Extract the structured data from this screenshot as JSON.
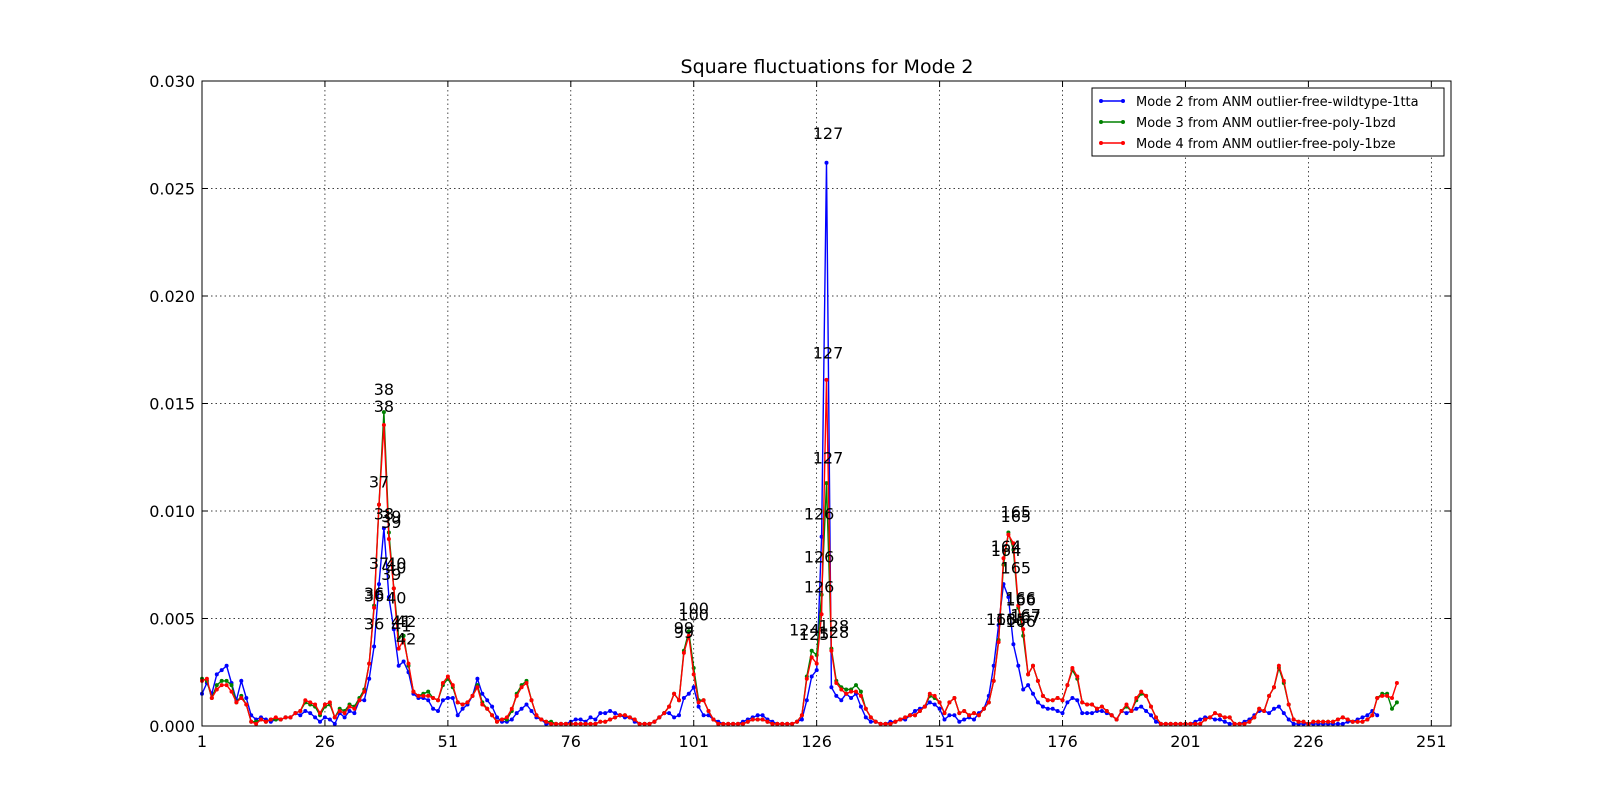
{
  "chart_data": {
    "type": "line",
    "title": "Square fluctuations for Mode 2",
    "xlabel": "",
    "ylabel": "",
    "xlim": [
      1,
      255
    ],
    "ylim": [
      0,
      0.03
    ],
    "x_start": 1,
    "x_ticks": [
      1,
      26,
      51,
      76,
      101,
      126,
      151,
      176,
      201,
      226,
      251
    ],
    "y_ticks": [
      "0.000",
      "0.005",
      "0.010",
      "0.015",
      "0.020",
      "0.025",
      "0.030"
    ],
    "grid": true,
    "legend_position": "top-right",
    "series": [
      {
        "name": "Mode 2 from ANM outlier-free-wildtype-1tta",
        "color": "#0000ff",
        "values": [
          0.0015,
          0.002,
          0.0015,
          0.0024,
          0.0026,
          0.0028,
          0.002,
          0.0012,
          0.0021,
          0.0013,
          0.0005,
          0.0003,
          0.0004,
          0.0003,
          0.0002,
          0.0003,
          0.0003,
          0.0004,
          0.0004,
          0.0006,
          0.0005,
          0.0007,
          0.0006,
          0.0004,
          0.0002,
          0.0004,
          0.0003,
          0.0001,
          0.0006,
          0.0004,
          0.0007,
          0.0006,
          0.0012,
          0.0012,
          0.0022,
          0.0037,
          0.0066,
          0.0092,
          0.006,
          0.0045,
          0.0028,
          0.003,
          0.0025,
          0.0015,
          0.0013,
          0.0013,
          0.0012,
          0.0008,
          0.0007,
          0.0012,
          0.0013,
          0.0013,
          0.0005,
          0.0008,
          0.001,
          0.0014,
          0.0022,
          0.0015,
          0.0012,
          0.0009,
          0.0004,
          0.0002,
          0.0002,
          0.0003,
          0.0006,
          0.0008,
          0.001,
          0.0007,
          0.0004,
          0.0003,
          0.0001,
          0.0001,
          0.0001,
          0.0001,
          0.0001,
          0.0002,
          0.0003,
          0.0003,
          0.0002,
          0.0004,
          0.0003,
          0.0006,
          0.0006,
          0.0007,
          0.0006,
          0.0005,
          0.0004,
          0.0004,
          0.0002,
          0.0001,
          0.0001,
          0.0001,
          0.0002,
          0.0004,
          0.0006,
          0.0006,
          0.0004,
          0.0005,
          0.0013,
          0.0015,
          0.0018,
          0.0009,
          0.0005,
          0.0005,
          0.0003,
          0.0002,
          0.0001,
          0.0001,
          0.0001,
          0.0001,
          0.0002,
          0.0003,
          0.0004,
          0.0005,
          0.0005,
          0.0003,
          0.0002,
          0.0001,
          0.0001,
          0.0001,
          0.0001,
          0.0002,
          0.0003,
          0.0012,
          0.0023,
          0.0026,
          0.0088,
          0.0262,
          0.0018,
          0.0014,
          0.0012,
          0.0015,
          0.0013,
          0.0015,
          0.0009,
          0.0004,
          0.0002,
          0.0002,
          0.0001,
          0.0001,
          0.0002,
          0.0002,
          0.0003,
          0.0003,
          0.0005,
          0.0007,
          0.0008,
          0.0009,
          0.0011,
          0.001,
          0.0008,
          0.0003,
          0.0005,
          0.0005,
          0.0002,
          0.0003,
          0.0004,
          0.0003,
          0.0006,
          0.0008,
          0.0014,
          0.0028,
          0.0047,
          0.0066,
          0.006,
          0.0038,
          0.0028,
          0.0017,
          0.0019,
          0.0015,
          0.0011,
          0.0009,
          0.0008,
          0.0008,
          0.0007,
          0.0006,
          0.0011,
          0.0013,
          0.0012,
          0.0006,
          0.0006,
          0.0006,
          0.0007,
          0.0007,
          0.0006,
          0.0005,
          0.0003,
          0.0007,
          0.0006,
          0.0007,
          0.0008,
          0.0009,
          0.0007,
          0.0005,
          0.0002,
          0.0001,
          0.0001,
          0.0001,
          0.0001,
          0.0001,
          0.0001,
          0.0001,
          0.0002,
          0.0003,
          0.0004,
          0.0004,
          0.0003,
          0.0003,
          0.0002,
          0.0001,
          0.0001,
          0.0001,
          0.0002,
          0.0003,
          0.0005,
          0.0007,
          0.0007,
          0.0006,
          0.0008,
          0.0009,
          0.0006,
          0.0003,
          0.0001,
          0.0001,
          0.0001,
          0.0001,
          0.0001,
          0.0001,
          0.0001,
          0.0001,
          0.0001,
          0.0001,
          0.0001,
          0.0002,
          0.0002,
          0.0003,
          0.0004,
          0.0005,
          0.0007,
          0.0005
        ]
      },
      {
        "name": "Mode 3 from ANM outlier-free-poly-1bzd",
        "color": "#008000",
        "values": [
          0.0022,
          0.0021,
          0.0013,
          0.0019,
          0.0021,
          0.0021,
          0.0019,
          0.0011,
          0.0014,
          0.001,
          0.0002,
          0.0002,
          0.0003,
          0.0002,
          0.0003,
          0.0003,
          0.0003,
          0.0004,
          0.0004,
          0.0006,
          0.0007,
          0.0011,
          0.001,
          0.0009,
          0.0005,
          0.0009,
          0.001,
          0.0004,
          0.0008,
          0.0007,
          0.001,
          0.0009,
          0.0013,
          0.0017,
          0.0029,
          0.0056,
          0.0103,
          0.0146,
          0.009,
          0.0064,
          0.0041,
          0.0042,
          0.0028,
          0.0016,
          0.0014,
          0.0015,
          0.0016,
          0.0013,
          0.0012,
          0.0019,
          0.0022,
          0.0018,
          0.0011,
          0.001,
          0.0011,
          0.0014,
          0.0019,
          0.0011,
          0.0008,
          0.0005,
          0.0002,
          0.0003,
          0.0003,
          0.0007,
          0.0015,
          0.0019,
          0.0021,
          0.0012,
          0.0005,
          0.0003,
          0.0002,
          0.0002,
          0.0001,
          0.0001,
          0.0001,
          0.0001,
          0.0001,
          0.0001,
          0.0001,
          0.0001,
          0.0001,
          0.0002,
          0.0002,
          0.0003,
          0.0004,
          0.0005,
          0.0005,
          0.0004,
          0.0003,
          0.0001,
          0.0001,
          0.0001,
          0.0002,
          0.0004,
          0.0006,
          0.0009,
          0.0015,
          0.0012,
          0.0035,
          0.0044,
          0.0027,
          0.0012,
          0.0012,
          0.0007,
          0.0003,
          0.0001,
          0.0001,
          0.0001,
          0.0001,
          0.0001,
          0.0001,
          0.0002,
          0.0003,
          0.0003,
          0.0003,
          0.0002,
          0.0001,
          0.0001,
          0.0001,
          0.0001,
          0.0001,
          0.0002,
          0.0005,
          0.0023,
          0.0035,
          0.0033,
          0.0061,
          0.0113,
          0.0036,
          0.0021,
          0.0018,
          0.0017,
          0.0017,
          0.0019,
          0.0016,
          0.0008,
          0.0004,
          0.0002,
          0.0001,
          0.0001,
          0.0001,
          0.0002,
          0.0003,
          0.0004,
          0.0005,
          0.0005,
          0.0007,
          0.0009,
          0.0014,
          0.0013,
          0.0011,
          0.0006,
          0.0011,
          0.0013,
          0.0006,
          0.0007,
          0.0005,
          0.0006,
          0.0005,
          0.0008,
          0.0011,
          0.0021,
          0.004,
          0.0075,
          0.009,
          0.0082,
          0.0055,
          0.0042,
          0.0024,
          0.0028,
          0.0021,
          0.0014,
          0.0012,
          0.0012,
          0.0013,
          0.0012,
          0.0019,
          0.0026,
          0.0022,
          0.0011,
          0.001,
          0.001,
          0.0008,
          0.0009,
          0.0007,
          0.0005,
          0.0003,
          0.0007,
          0.0009,
          0.0007,
          0.0012,
          0.0015,
          0.0014,
          0.0009,
          0.0004,
          0.0001,
          0.0001,
          0.0001,
          0.0001,
          0.0001,
          0.0001,
          0.0001,
          0.0001,
          0.0001,
          0.0003,
          0.0004,
          0.0006,
          0.0005,
          0.0004,
          0.0004,
          0.0001,
          0.0001,
          0.0001,
          0.0002,
          0.0004,
          0.0008,
          0.0007,
          0.0014,
          0.0018,
          0.0027,
          0.002,
          0.001,
          0.0003,
          0.0002,
          0.0002,
          0.0001,
          0.0002,
          0.0002,
          0.0002,
          0.0002,
          0.0002,
          0.0003,
          0.0004,
          0.0003,
          0.0002,
          0.0002,
          0.0002,
          0.0003,
          0.0005,
          0.0013,
          0.0015,
          0.0015,
          0.0008,
          0.0011
        ]
      },
      {
        "name": "Mode 4 from ANM outlier-free-poly-1bze",
        "color": "#ff0000",
        "values": [
          0.0021,
          0.0022,
          0.0013,
          0.0017,
          0.0019,
          0.0019,
          0.0016,
          0.0011,
          0.0013,
          0.001,
          0.0002,
          0.0001,
          0.0003,
          0.0002,
          0.0003,
          0.0004,
          0.0003,
          0.0004,
          0.0004,
          0.0006,
          0.0007,
          0.0012,
          0.0011,
          0.001,
          0.0006,
          0.001,
          0.0011,
          0.0004,
          0.0007,
          0.0006,
          0.0009,
          0.0008,
          0.0012,
          0.0016,
          0.0029,
          0.0055,
          0.0103,
          0.014,
          0.0087,
          0.0064,
          0.0036,
          0.004,
          0.0029,
          0.0016,
          0.0014,
          0.0014,
          0.0014,
          0.0013,
          0.0012,
          0.002,
          0.0023,
          0.0019,
          0.0011,
          0.001,
          0.0011,
          0.0014,
          0.0018,
          0.001,
          0.0008,
          0.0005,
          0.0002,
          0.0003,
          0.0004,
          0.0008,
          0.0014,
          0.0018,
          0.002,
          0.0012,
          0.0005,
          0.0003,
          0.0002,
          0.0001,
          0.0001,
          0.0001,
          0.0001,
          0.0001,
          0.0001,
          0.0001,
          0.0001,
          0.0001,
          0.0001,
          0.0002,
          0.0002,
          0.0003,
          0.0004,
          0.0005,
          0.0005,
          0.0004,
          0.0003,
          0.0001,
          0.0001,
          0.0001,
          0.0002,
          0.0004,
          0.0006,
          0.0009,
          0.0015,
          0.0012,
          0.0034,
          0.0042,
          0.0024,
          0.0011,
          0.0012,
          0.0007,
          0.0003,
          0.0001,
          0.0001,
          0.0001,
          0.0001,
          0.0001,
          0.0001,
          0.0002,
          0.0003,
          0.0003,
          0.0003,
          0.0002,
          0.0001,
          0.0001,
          0.0001,
          0.0001,
          0.0001,
          0.0002,
          0.0005,
          0.0022,
          0.0032,
          0.0029,
          0.0052,
          0.0161,
          0.0035,
          0.002,
          0.0017,
          0.0015,
          0.0016,
          0.0016,
          0.0014,
          0.0008,
          0.0004,
          0.0002,
          0.0001,
          0.0001,
          0.0001,
          0.0002,
          0.0003,
          0.0004,
          0.0005,
          0.0005,
          0.0007,
          0.0009,
          0.0015,
          0.0014,
          0.0011,
          0.0006,
          0.0011,
          0.0013,
          0.0006,
          0.0007,
          0.0005,
          0.0006,
          0.0005,
          0.0008,
          0.0011,
          0.0021,
          0.0039,
          0.0078,
          0.0089,
          0.0085,
          0.0056,
          0.0045,
          0.0024,
          0.0028,
          0.0021,
          0.0014,
          0.0012,
          0.0012,
          0.0013,
          0.0012,
          0.0019,
          0.0027,
          0.0023,
          0.0011,
          0.001,
          0.001,
          0.0008,
          0.0009,
          0.0007,
          0.0005,
          0.0003,
          0.0007,
          0.001,
          0.0007,
          0.0013,
          0.0016,
          0.0014,
          0.0009,
          0.0004,
          0.0001,
          0.0001,
          0.0001,
          0.0001,
          0.0001,
          0.0001,
          0.0001,
          0.0001,
          0.0001,
          0.0003,
          0.0004,
          0.0006,
          0.0005,
          0.0004,
          0.0004,
          0.0001,
          0.0001,
          0.0001,
          0.0002,
          0.0004,
          0.0008,
          0.0007,
          0.0014,
          0.0018,
          0.0028,
          0.0021,
          0.001,
          0.0003,
          0.0002,
          0.0002,
          0.0001,
          0.0002,
          0.0002,
          0.0002,
          0.0002,
          0.0002,
          0.0003,
          0.0004,
          0.0003,
          0.0002,
          0.0002,
          0.0002,
          0.0003,
          0.0005,
          0.0013,
          0.0014,
          0.0014,
          0.0013,
          0.002
        ]
      }
    ],
    "annotations": [
      {
        "label": "38",
        "x": 38,
        "y": 0.0154
      },
      {
        "label": "38",
        "x": 38,
        "y": 0.0146
      },
      {
        "label": "37",
        "x": 37,
        "y": 0.0111
      },
      {
        "label": "38",
        "x": 38,
        "y": 0.0096
      },
      {
        "label": "39",
        "x": 39.5,
        "y": 0.0095
      },
      {
        "label": "39",
        "x": 39.5,
        "y": 0.0092
      },
      {
        "label": "37",
        "x": 37,
        "y": 0.0073
      },
      {
        "label": "40",
        "x": 40.5,
        "y": 0.0073
      },
      {
        "label": "40",
        "x": 40.5,
        "y": 0.0071
      },
      {
        "label": "39",
        "x": 39.5,
        "y": 0.0068
      },
      {
        "label": "36",
        "x": 36,
        "y": 0.0059
      },
      {
        "label": "36",
        "x": 36,
        "y": 0.0058
      },
      {
        "label": "40",
        "x": 40.5,
        "y": 0.0057
      },
      {
        "label": "36",
        "x": 36,
        "y": 0.0045
      },
      {
        "label": "41",
        "x": 41.5,
        "y": 0.0046
      },
      {
        "label": "42",
        "x": 42.5,
        "y": 0.0046
      },
      {
        "label": "41",
        "x": 41.5,
        "y": 0.0044
      },
      {
        "label": "42",
        "x": 42.5,
        "y": 0.0038
      },
      {
        "label": "100",
        "x": 101,
        "y": 0.0052
      },
      {
        "label": "100",
        "x": 101,
        "y": 0.0049
      },
      {
        "label": "99",
        "x": 99,
        "y": 0.0043
      },
      {
        "label": "99",
        "x": 99,
        "y": 0.0041
      },
      {
        "label": "127",
        "x": 128.3,
        "y": 0.0273
      },
      {
        "label": "127",
        "x": 128.3,
        "y": 0.0171
      },
      {
        "label": "127",
        "x": 128.3,
        "y": 0.0122
      },
      {
        "label": "126",
        "x": 126.5,
        "y": 0.0096
      },
      {
        "label": "126",
        "x": 126.5,
        "y": 0.0076
      },
      {
        "label": "126",
        "x": 126.5,
        "y": 0.0062
      },
      {
        "label": "124",
        "x": 123.5,
        "y": 0.0042
      },
      {
        "label": "125",
        "x": 125.5,
        "y": 0.004
      },
      {
        "label": "128",
        "x": 129.5,
        "y": 0.0044
      },
      {
        "label": "128",
        "x": 129.5,
        "y": 0.0041
      },
      {
        "label": "165",
        "x": 166.5,
        "y": 0.0097
      },
      {
        "label": "165",
        "x": 166.5,
        "y": 0.0095
      },
      {
        "label": "164",
        "x": 164.5,
        "y": 0.0081
      },
      {
        "label": "164",
        "x": 164.5,
        "y": 0.0079
      },
      {
        "label": "165",
        "x": 166.5,
        "y": 0.0071
      },
      {
        "label": "166",
        "x": 167.5,
        "y": 0.0057
      },
      {
        "label": "166",
        "x": 167.5,
        "y": 0.0056
      },
      {
        "label": "163",
        "x": 163.5,
        "y": 0.0047
      },
      {
        "label": "165",
        "x": 165.5,
        "y": 0.0047
      },
      {
        "label": "167",
        "x": 168.5,
        "y": 0.0049
      },
      {
        "label": "167",
        "x": 168.5,
        "y": 0.0048
      },
      {
        "label": "166",
        "x": 167.5,
        "y": 0.0046
      }
    ]
  }
}
